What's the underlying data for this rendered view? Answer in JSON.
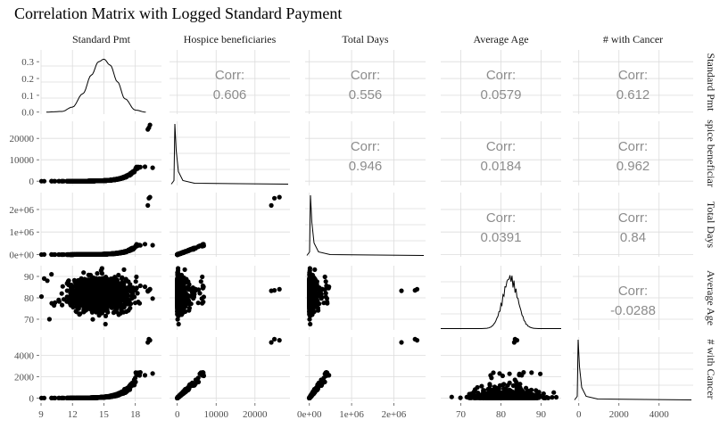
{
  "chart_data": {
    "type": "scatter-matrix",
    "title": "Correlation Matrix with Logged Standard Payment",
    "variables": [
      "Standard Pmt",
      "Hospice beneficiaries",
      "Total Days",
      "Average Age",
      "# with Cancer"
    ],
    "row_strip_labels": [
      "Standard Pmt",
      "spice beneficiar",
      "Total Days",
      "Average Age",
      "# with Cancer"
    ],
    "corr_label": "Corr:",
    "correlations": [
      {
        "row": 0,
        "col": 1,
        "value": "0.606"
      },
      {
        "row": 0,
        "col": 2,
        "value": "0.556"
      },
      {
        "row": 0,
        "col": 3,
        "value": "0.0579"
      },
      {
        "row": 0,
        "col": 4,
        "value": "0.612"
      },
      {
        "row": 1,
        "col": 2,
        "value": "0.946"
      },
      {
        "row": 1,
        "col": 3,
        "value": "0.0184"
      },
      {
        "row": 1,
        "col": 4,
        "value": "0.962"
      },
      {
        "row": 2,
        "col": 3,
        "value": "0.0391"
      },
      {
        "row": 2,
        "col": 4,
        "value": "0.84"
      },
      {
        "row": 3,
        "col": 4,
        "value": "-0.0288"
      }
    ],
    "x_axes": [
      {
        "range": [
          9,
          20.5
        ],
        "ticks": [
          9,
          12,
          15,
          18
        ],
        "labels": [
          "9",
          "12",
          "15",
          "18"
        ]
      },
      {
        "range": [
          -2000,
          29000
        ],
        "ticks": [
          0,
          10000,
          20000
        ],
        "labels": [
          "0",
          "10000",
          "20000"
        ]
      },
      {
        "range": [
          -100000,
          2750000
        ],
        "ticks": [
          0,
          1000000,
          2000000
        ],
        "labels": [
          "0e+00",
          "1e+06",
          "2e+06"
        ]
      },
      {
        "range": [
          65,
          95
        ],
        "ticks": [
          70,
          80,
          90
        ],
        "labels": [
          "70",
          "80",
          "90"
        ]
      },
      {
        "range": [
          -300,
          5700
        ],
        "ticks": [
          0,
          2000,
          4000
        ],
        "labels": [
          "0",
          "2000",
          "4000"
        ]
      }
    ],
    "y_axes": [
      {
        "range": [
          -0.012,
          0.37
        ],
        "ticks": [
          0,
          0.1,
          0.2,
          0.3
        ],
        "labels": [
          "0.0",
          "0.1",
          "0.2",
          "0.3"
        ]
      },
      {
        "range": [
          -2000,
          28000
        ],
        "ticks": [
          0,
          10000,
          20000
        ],
        "labels": [
          "0",
          "10000",
          "20000"
        ]
      },
      {
        "range": [
          -100000,
          2750000
        ],
        "ticks": [
          0,
          1000000,
          2000000
        ],
        "labels": [
          "0e+00",
          "1e+06",
          "2e+06"
        ]
      },
      {
        "range": [
          65,
          95
        ],
        "ticks": [
          70,
          80,
          90
        ],
        "labels": [
          "70",
          "80",
          "90"
        ]
      },
      {
        "range": [
          -300,
          5700
        ],
        "ticks": [
          0,
          2000,
          4000
        ],
        "labels": [
          "0",
          "2000",
          "4000"
        ]
      }
    ],
    "diagonal_density": {
      "standard_pmt": {
        "x": [
          9.5,
          11,
          12,
          13,
          13.8,
          14.5,
          15,
          15.6,
          16.3,
          17,
          18,
          19
        ],
        "y": [
          0.0,
          0.004,
          0.03,
          0.11,
          0.22,
          0.3,
          0.315,
          0.28,
          0.18,
          0.08,
          0.012,
          0.0
        ]
      }
    },
    "grid": true,
    "legend": "none"
  }
}
